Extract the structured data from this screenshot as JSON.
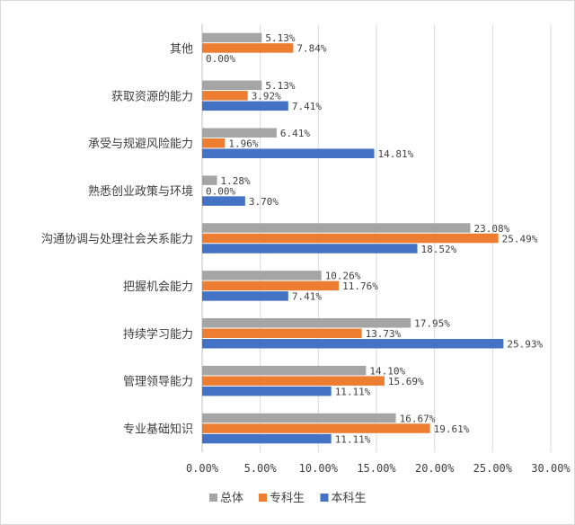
{
  "chart_data": {
    "type": "bar",
    "orientation": "horizontal",
    "categories": [
      "其他",
      "获取资源的能力",
      "承受与规避风险能力",
      "熟悉创业政策与环境",
      "沟通协调与处理社会关系能力",
      "把握机会能力",
      "持续学习能力",
      "管理领导能力",
      "专业基础知识"
    ],
    "series": [
      {
        "name": "总体",
        "color": "#a5a5a5",
        "values": [
          5.13,
          5.13,
          6.41,
          1.28,
          23.08,
          10.26,
          17.95,
          14.1,
          16.67
        ],
        "labels": [
          "5.13%",
          "5.13%",
          "6.41%",
          "1.28%",
          "23.08%",
          "10.26%",
          "17.95%",
          "14.10%",
          "16.67%"
        ]
      },
      {
        "name": "专科生",
        "color": "#ed7d31",
        "values": [
          7.84,
          3.92,
          1.96,
          0.0,
          25.49,
          11.76,
          13.73,
          15.69,
          19.61
        ],
        "labels": [
          "7.84%",
          "3.92%",
          "1.96%",
          "0.00%",
          "25.49%",
          "11.76%",
          "13.73%",
          "15.69%",
          "19.61%"
        ]
      },
      {
        "name": "本科生",
        "color": "#4472c4",
        "values": [
          0.0,
          7.41,
          14.81,
          3.7,
          18.52,
          7.41,
          25.93,
          11.11,
          11.11
        ],
        "labels": [
          "0.00%",
          "7.41%",
          "14.81%",
          "3.70%",
          "18.52%",
          "7.41%",
          "25.93%",
          "11.11%",
          "11.11%"
        ]
      }
    ],
    "xlim": [
      0,
      30
    ],
    "xticks": [
      0,
      5,
      10,
      15,
      20,
      25,
      30
    ],
    "xtick_labels": [
      "0.00%",
      "5.00%",
      "10.00%",
      "15.00%",
      "20.00%",
      "25.00%",
      "30.00%"
    ],
    "grid": true,
    "legend_position": "bottom",
    "title": "",
    "xlabel": "",
    "ylabel": ""
  }
}
